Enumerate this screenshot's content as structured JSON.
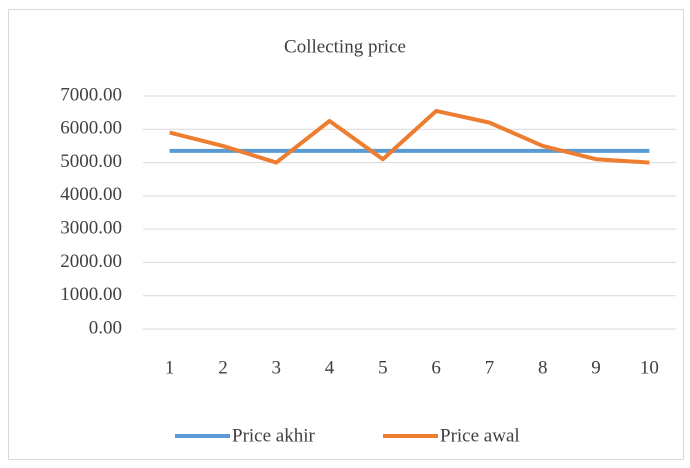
{
  "chart_data": {
    "type": "line",
    "title": "Collecting price",
    "categories": [
      "1",
      "2",
      "3",
      "4",
      "5",
      "6",
      "7",
      "8",
      "9",
      "10"
    ],
    "series": [
      {
        "name": "Price akhir",
        "color": "#5b9bd5",
        "values": [
          5350,
          5350,
          5350,
          5350,
          5350,
          5350,
          5350,
          5350,
          5350,
          5350
        ]
      },
      {
        "name": "Price awal",
        "color": "#ed7d31",
        "values": [
          5900,
          5500,
          5000,
          6250,
          5100,
          6550,
          6200,
          5500,
          5100,
          5000
        ]
      }
    ],
    "ylim": [
      0,
      7000
    ],
    "yticks": [
      {
        "value": 0,
        "label": "0.00"
      },
      {
        "value": 1000,
        "label": "1000.00"
      },
      {
        "value": 2000,
        "label": "2000.00"
      },
      {
        "value": 3000,
        "label": "3000.00"
      },
      {
        "value": 4000,
        "label": "4000.00"
      },
      {
        "value": 5000,
        "label": "5000.00"
      },
      {
        "value": 6000,
        "label": "6000.00"
      },
      {
        "value": 7000,
        "label": "7000.00"
      }
    ],
    "grid": true,
    "legend": "bottom"
  }
}
